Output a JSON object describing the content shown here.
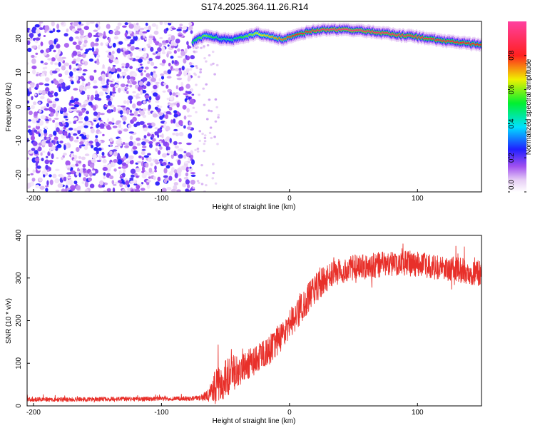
{
  "title": "S174.2025.364.11.26.R14",
  "chart_data": [
    {
      "type": "heatmap",
      "xlabel": "Height of straight line (km)",
      "ylabel": "Frequency (Hz)",
      "xlim": [
        -205,
        150
      ],
      "ylim": [
        -25,
        25
      ],
      "xticks": [
        -200,
        -100,
        0,
        100
      ],
      "yticks": [
        -20,
        -10,
        0,
        10,
        20
      ],
      "noise_region_x": [
        -205,
        -75
      ],
      "sparse_region_x": [
        -75,
        -55
      ],
      "signal_band": {
        "description": "Narrow high-amplitude frequency band",
        "x": [
          -75,
          -65,
          -55,
          -45,
          -35,
          -25,
          -15,
          -5,
          5,
          15,
          25,
          35,
          45,
          55,
          65,
          75,
          85,
          95,
          105,
          115,
          125,
          135,
          145,
          150
        ],
        "freq": [
          19.0,
          21.0,
          20.0,
          19.5,
          20.5,
          21.5,
          20.5,
          19.8,
          20.8,
          22.0,
          22.5,
          22.6,
          22.5,
          22.4,
          22.0,
          21.5,
          21.0,
          20.7,
          20.2,
          19.6,
          19.1,
          18.7,
          18.3,
          18.2
        ],
        "peak_amplitude": [
          0.5,
          0.6,
          0.45,
          0.45,
          0.55,
          0.65,
          0.7,
          0.75,
          0.8,
          0.85,
          0.9,
          0.92,
          0.93,
          0.92,
          0.9,
          0.9,
          0.9,
          0.88,
          0.88,
          0.85,
          0.85,
          0.82,
          0.8,
          0.8
        ]
      },
      "colorbar": {
        "label": "Normalized spectral amplitude",
        "range": [
          0.0,
          1.0
        ],
        "ticks": [
          0.0,
          0.2,
          0.4,
          0.6,
          0.8
        ],
        "tick_labels": [
          "0.0",
          "0.2",
          "0.4",
          "0.6",
          "0.8"
        ]
      }
    },
    {
      "type": "line",
      "xlabel": "Height of straight line (km)",
      "ylabel": "SNR (10 * v/v)",
      "xlim": [
        -205,
        150
      ],
      "ylim": [
        0,
        400
      ],
      "xticks": [
        -200,
        -100,
        0,
        100
      ],
      "yticks": [
        0,
        100,
        200,
        300,
        400
      ],
      "color": "#e8302a",
      "series": [
        {
          "name": "SNR",
          "x": [
            -205,
            -190,
            -175,
            -160,
            -145,
            -130,
            -115,
            -100,
            -85,
            -70,
            -63,
            -58,
            -52,
            -46,
            -40,
            -34,
            -28,
            -22,
            -16,
            -10,
            -4,
            2,
            8,
            14,
            20,
            26,
            32,
            38,
            44,
            50,
            56,
            62,
            68,
            74,
            80,
            86,
            92,
            98,
            104,
            110,
            116,
            122,
            128,
            134,
            140,
            146,
            150
          ],
          "values": [
            15,
            15,
            15,
            15,
            16,
            16,
            16,
            17,
            17,
            18,
            25,
            45,
            60,
            75,
            85,
            95,
            105,
            115,
            130,
            150,
            175,
            200,
            225,
            250,
            275,
            295,
            305,
            315,
            320,
            325,
            325,
            328,
            330,
            332,
            335,
            335,
            335,
            333,
            330,
            328,
            325,
            322,
            320,
            318,
            315,
            312,
            310
          ],
          "noise_amplitude": [
            5,
            5,
            5,
            5,
            5,
            5,
            5,
            5,
            5,
            6,
            15,
            40,
            45,
            45,
            40,
            35,
            35,
            35,
            35,
            35,
            35,
            35,
            35,
            35,
            35,
            35,
            30,
            30,
            30,
            30,
            30,
            30,
            30,
            30,
            30,
            30,
            30,
            30,
            30,
            30,
            30,
            30,
            30,
            30,
            30,
            30,
            30
          ]
        }
      ]
    }
  ]
}
